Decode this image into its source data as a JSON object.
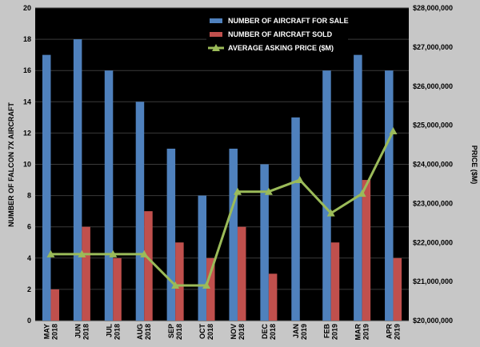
{
  "chart_data": {
    "type": "bar",
    "categories": [
      [
        "MAY",
        "2018"
      ],
      [
        "JUN",
        "2018"
      ],
      [
        "JUL",
        "2018"
      ],
      [
        "AUG",
        "2018"
      ],
      [
        "SEP",
        "2018"
      ],
      [
        "OCT",
        "2018"
      ],
      [
        "NOV",
        "2018"
      ],
      [
        "DEC",
        "2018"
      ],
      [
        "JAN",
        "2019"
      ],
      [
        "FEB",
        "2019"
      ],
      [
        "MAR",
        "2019"
      ],
      [
        "APR",
        "2019"
      ]
    ],
    "ylabel": "NUMBER OF FALCON 7X AIRCRAFT",
    "y2label": "PRICE ($M)",
    "ylim": [
      0,
      20
    ],
    "y2lim": [
      20000000,
      28000000
    ],
    "yticks": [
      "0",
      "2",
      "4",
      "6",
      "8",
      "10",
      "12",
      "14",
      "16",
      "18",
      "20"
    ],
    "y2ticks": [
      "$20,000,000",
      "$21,000,000",
      "$22,000,000",
      "$23,000,000",
      "$24,000,000",
      "$25,000,000",
      "$26,000,000",
      "$27,000,000",
      "$28,000,000"
    ],
    "legend_position": "top-center",
    "plot_background": "#000000",
    "series": [
      {
        "name": "NUMBER OF AIRCRAFT FOR SALE",
        "kind": "bar",
        "axis": "left",
        "color": "#4f81bd",
        "values": [
          17,
          18,
          16,
          14,
          11,
          8,
          11,
          10,
          13,
          16,
          17,
          16
        ]
      },
      {
        "name": "NUMBER OF AIRCRAFT SOLD",
        "kind": "bar",
        "axis": "left",
        "color": "#c0504d",
        "values": [
          2,
          6,
          4,
          7,
          5,
          4,
          6,
          3,
          0,
          5,
          9,
          4
        ]
      },
      {
        "name": "AVERAGE ASKING PRICE ($M)",
        "kind": "line",
        "axis": "right",
        "color": "#9bbb59",
        "marker": "triangle",
        "values": [
          21700000,
          21700000,
          21700000,
          21700000,
          20900000,
          20900000,
          23300000,
          23300000,
          23600000,
          22750000,
          23250000,
          24850000
        ]
      }
    ]
  }
}
